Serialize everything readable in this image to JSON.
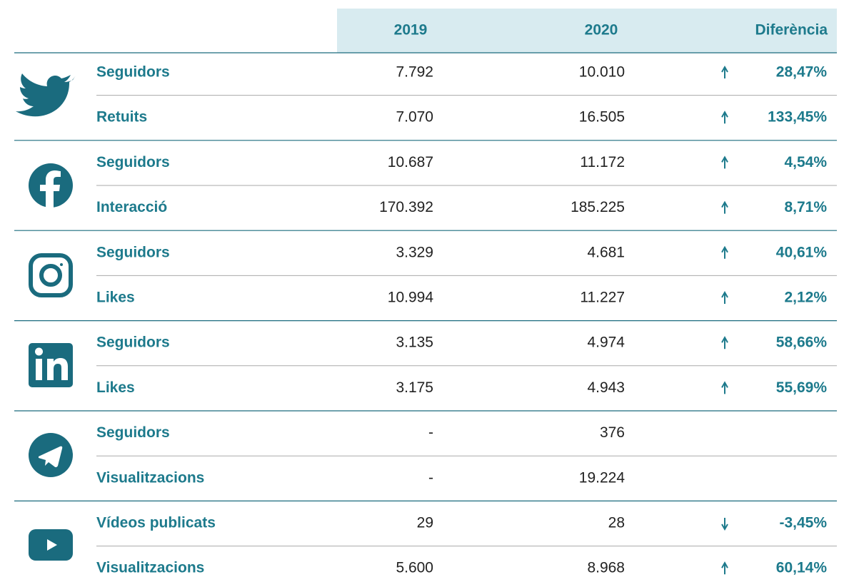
{
  "table": {
    "header": [
      "2019",
      "2020",
      "Diferència"
    ],
    "groups": [
      {
        "rows": [
          {
            "label": "Seguidors",
            "y2019": "7.792",
            "y2020": "10.010",
            "diff": "28,47%"
          },
          {
            "label": "Retuits",
            "y2019": "7.070",
            "y2020": "16.505",
            "diff": "133,45%"
          }
        ]
      },
      {
        "rows": [
          {
            "label": "Seguidors",
            "y2019": "10.687",
            "y2020": "11.172",
            "diff": "4,54%"
          },
          {
            "label": "Interacció",
            "y2019": "170.392",
            "y2020": "185.225",
            "diff": "8,71%"
          }
        ]
      },
      {
        "rows": [
          {
            "label": "Seguidors",
            "y2019": "3.329",
            "y2020": "4.681",
            "diff": "40,61%"
          },
          {
            "label": "Likes",
            "y2019": "10.994",
            "y2020": "11.227",
            "diff": "2,12%"
          }
        ]
      },
      {
        "rows": [
          {
            "label": "Seguidors",
            "y2019": "3.135",
            "y2020": "4.974",
            "diff": "58,66%"
          },
          {
            "label": "Likes",
            "y2019": "3.175",
            "y2020": "4.943",
            "diff": "55,69%"
          }
        ]
      },
      {
        "rows": [
          {
            "label": "Seguidors",
            "y2019": "-",
            "y2020": "376"
          },
          {
            "label": "Visualitzacions",
            "y2019": "-",
            "y2020": "19.224"
          }
        ]
      },
      {
        "rows": [
          {
            "label": "Vídeos publicats",
            "y2019": "29",
            "y2020": "28",
            "diff": "-3,45%"
          },
          {
            "label": "Visualitzacions",
            "y2019": "5.600",
            "y2020": "8.968",
            "diff": "60,14%"
          }
        ]
      }
    ]
  }
}
